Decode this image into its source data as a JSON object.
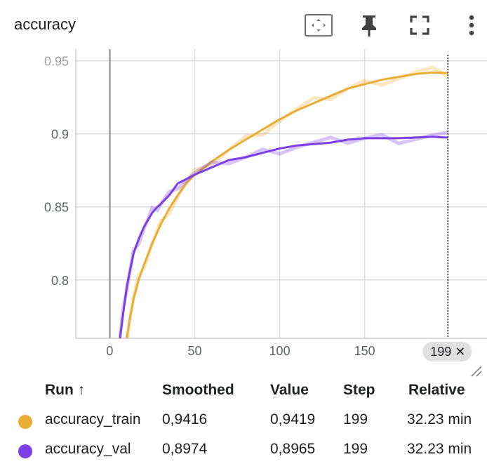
{
  "card": {
    "title": "accuracy",
    "toolbar": [
      {
        "name": "fit-domain-icon"
      },
      {
        "name": "pin-icon"
      },
      {
        "name": "fullscreen-icon"
      },
      {
        "name": "more-vert-icon"
      }
    ]
  },
  "chart_data": {
    "type": "line",
    "title": "accuracy",
    "xlabel": "",
    "ylabel": "",
    "xlim": [
      -20,
      222
    ],
    "ylim": [
      0.76,
      0.958
    ],
    "x_ticks": [
      0,
      50,
      100,
      150
    ],
    "y_ticks": [
      0.8,
      0.85,
      0.9,
      0.95
    ],
    "x_tick_labels": [
      "0",
      "50",
      "100",
      "150"
    ],
    "y_tick_labels": [
      "0.8",
      "0.85",
      "0.9",
      "0.95"
    ],
    "grid": true,
    "hover_step": 199,
    "hover_label": "199 ✕",
    "series": [
      {
        "name": "accuracy_train",
        "color": "#e8ae33",
        "x": [
          10,
          12,
          14,
          17,
          20,
          25,
          30,
          35,
          40,
          45,
          50,
          60,
          70,
          80,
          90,
          100,
          110,
          120,
          130,
          140,
          150,
          160,
          170,
          180,
          190,
          199
        ],
        "y": [
          0.76,
          0.775,
          0.787,
          0.8,
          0.81,
          0.825,
          0.838,
          0.849,
          0.858,
          0.866,
          0.872,
          0.881,
          0.889,
          0.896,
          0.903,
          0.91,
          0.916,
          0.921,
          0.926,
          0.931,
          0.934,
          0.937,
          0.939,
          0.941,
          0.942,
          0.9416
        ]
      },
      {
        "name": "accuracy_val",
        "color": "#7e3ee6",
        "x": [
          6,
          8,
          10,
          12,
          14,
          17,
          20,
          23,
          25,
          28,
          30,
          35,
          40,
          45,
          50,
          60,
          70,
          80,
          90,
          100,
          110,
          120,
          130,
          140,
          150,
          160,
          170,
          180,
          190,
          199
        ],
        "y": [
          0.76,
          0.778,
          0.795,
          0.807,
          0.818,
          0.828,
          0.836,
          0.842,
          0.846,
          0.85,
          0.852,
          0.858,
          0.866,
          0.869,
          0.872,
          0.877,
          0.882,
          0.884,
          0.887,
          0.89,
          0.892,
          0.893,
          0.894,
          0.896,
          0.897,
          0.897,
          0.897,
          0.8975,
          0.898,
          0.8974
        ]
      }
    ]
  },
  "table": {
    "headers": {
      "run": "Run",
      "sort_arrow": "↑",
      "smoothed": "Smoothed",
      "value": "Value",
      "step": "Step",
      "relative": "Relative"
    },
    "rows": [
      {
        "run": "accuracy_train",
        "color": "#e8ae33",
        "smoothed": "0,9416",
        "value": "0,9419",
        "step": "199",
        "relative": "32.23 min"
      },
      {
        "run": "accuracy_val",
        "color": "#7e3ee6",
        "smoothed": "0,8974",
        "value": "0,8965",
        "step": "199",
        "relative": "32.23 min"
      }
    ]
  }
}
